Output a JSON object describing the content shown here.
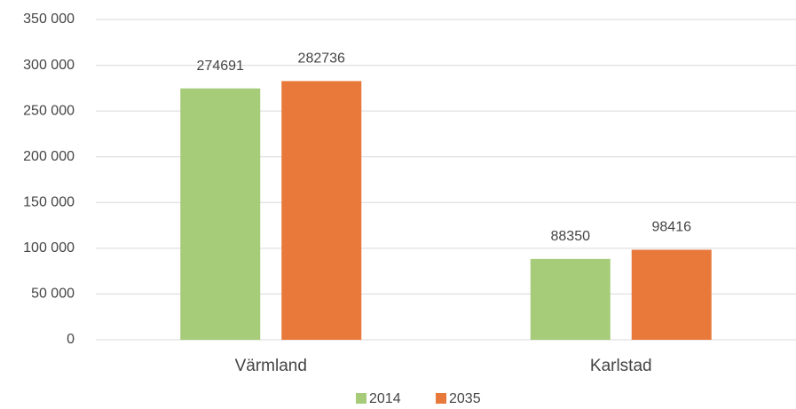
{
  "chart_data": {
    "type": "bar",
    "categories": [
      "Värmland",
      "Karlstad"
    ],
    "series": [
      {
        "name": "2014",
        "color": "#a6cc7a",
        "values": [
          274691,
          88350
        ]
      },
      {
        "name": "2035",
        "color": "#e8793b",
        "values": [
          282736,
          98416
        ]
      }
    ],
    "ylim": [
      0,
      350000
    ],
    "yticks": [
      0,
      {
        "value": 50000,
        "label": "50 000"
      },
      {
        "value": 100000,
        "label": "100 000"
      },
      {
        "value": 150000,
        "label": "150 000"
      },
      {
        "value": 200000,
        "label": "200 000"
      },
      {
        "value": 250000,
        "label": "250 000"
      },
      {
        "value": 300000,
        "label": "300 000"
      },
      {
        "value": 350000,
        "label": "350 000"
      }
    ],
    "grid": true,
    "legend": "bottom"
  }
}
